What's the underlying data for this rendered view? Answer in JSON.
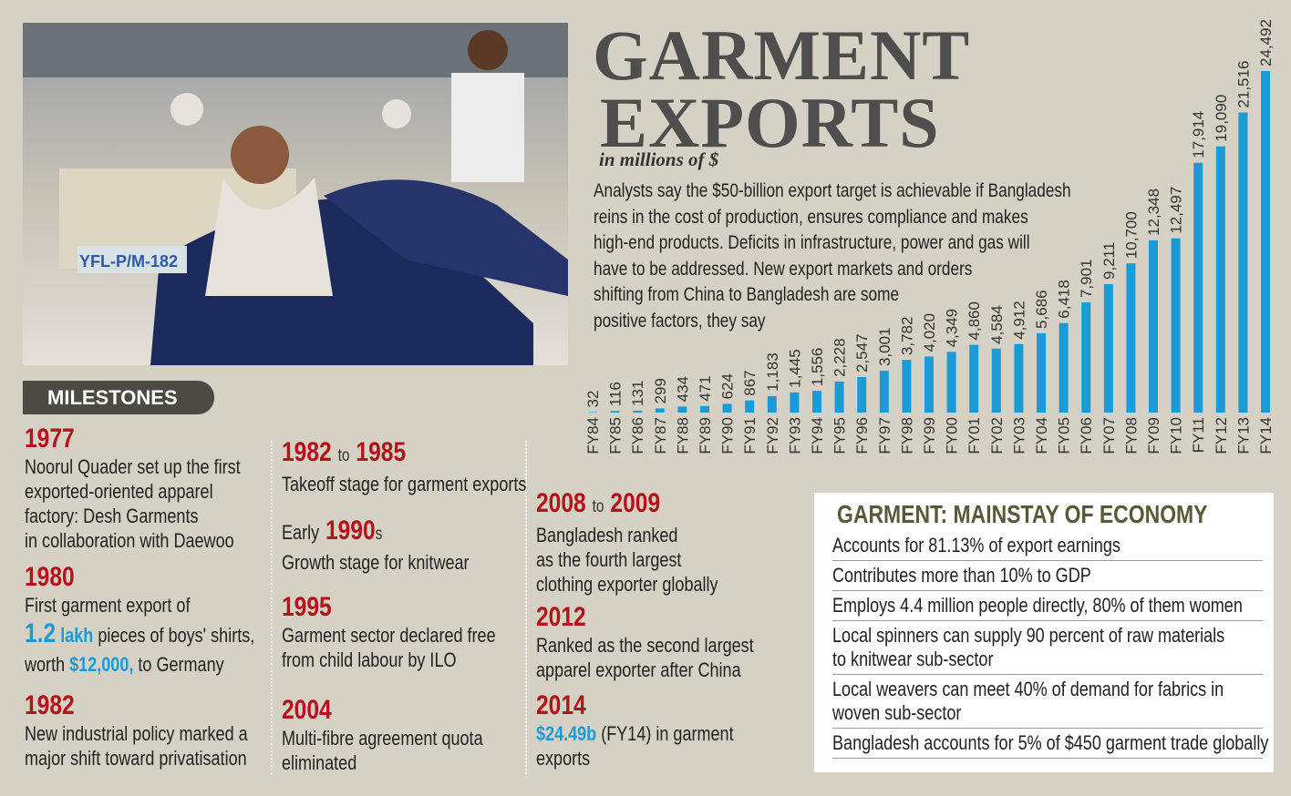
{
  "chart_data": {
    "type": "bar",
    "title": [
      "GARMENT",
      "EXPORTS"
    ],
    "subtitle": "in millions of $",
    "description": [
      "Analysts say the $50-billion export target is achievable if Bangladesh",
      "reins in the cost of production, ensures compliance and makes",
      "high-end products. Deficits in infrastructure, power and gas will",
      "have to be addressed. New export markets and orders",
      "shifting from China to Bangladesh are some",
      "positive factors, they say"
    ],
    "categories": [
      "FY84",
      "FY85",
      "FY86",
      "FY87",
      "FY88",
      "FY89",
      "FY90",
      "FY91",
      "FY92",
      "FY93",
      "FY94",
      "FY95",
      "FY96",
      "FY97",
      "FY98",
      "FY99",
      "FY00",
      "FY01",
      "FY02",
      "FY03",
      "FY04",
      "FY05",
      "FY06",
      "FY07",
      "FY08",
      "FY09",
      "FY10",
      "FY11",
      "FY12",
      "FY13",
      "FY14"
    ],
    "values": [
      32,
      116,
      131,
      299,
      434,
      471,
      624,
      867,
      1183,
      1445,
      1556,
      2228,
      2547,
      3001,
      3782,
      4020,
      4349,
      4860,
      4584,
      4912,
      5686,
      6418,
      7901,
      9211,
      10700,
      12348,
      12497,
      17914,
      19090,
      21516,
      24492
    ],
    "value_labels": [
      "32",
      "116",
      "131",
      "299",
      "434",
      "471",
      "624",
      "867",
      "1,183",
      "1,445",
      "1,556",
      "2,228",
      "2,547",
      "3,001",
      "3,782",
      "4,020",
      "4,349",
      "4,860",
      "4,584",
      "4,912",
      "5,686",
      "6,418",
      "7,901",
      "9,211",
      "10,700",
      "12,348",
      "12,497",
      "17,914",
      "19,090",
      "21,516",
      "24,492"
    ],
    "color": "#1a9bd7"
  },
  "milestones": {
    "label": "MILESTONES",
    "items": [
      {
        "heading": [
          "1977"
        ],
        "lines": [
          "Noorul Quader set up the first",
          "exported-oriented apparel",
          "factory: Desh Garments",
          "in collaboration with Daewoo"
        ]
      },
      {
        "heading": [
          "1980"
        ],
        "lines": [
          "First garment export of",
          [
            "1.2",
            "lakh",
            "pieces of boys' shirts,"
          ],
          [
            "worth",
            "$12,000,",
            "to Germany"
          ]
        ]
      },
      {
        "heading": [
          "1982"
        ],
        "lines": [
          "New industrial policy marked a",
          "major shift toward privatisation"
        ]
      },
      {
        "heading": [
          "1982",
          "to",
          "1985"
        ],
        "lines": [
          "Takeoff stage for garment exports"
        ]
      },
      {
        "heading": [
          "Early",
          "1990",
          "s"
        ],
        "lines": [
          "Growth stage for knitwear"
        ]
      },
      {
        "heading": [
          "1995"
        ],
        "lines": [
          "Garment sector declared free",
          "from child labour by ILO"
        ]
      },
      {
        "heading": [
          "2004"
        ],
        "lines": [
          "Multi-fibre agreement quota",
          "eliminated"
        ]
      },
      {
        "heading": [
          "2008",
          "to",
          "2009"
        ],
        "lines": [
          "Bangladesh ranked",
          "as the fourth largest",
          "clothing exporter globally"
        ]
      },
      {
        "heading": [
          "2012"
        ],
        "lines": [
          "Ranked as the second largest",
          "apparel exporter after China"
        ]
      },
      {
        "heading": [
          "2014"
        ],
        "lines": [
          [
            "$24.49b",
            "(FY14) in garment"
          ],
          "exports"
        ]
      }
    ]
  },
  "table": {
    "title": "GARMENT: MAINSTAY OF ECONOMY",
    "rows": [
      [
        "Accounts for 81.13% of export earnings"
      ],
      [
        "Contributes more than 10% to GDP"
      ],
      [
        "Employs 4.4 million people directly, 80% of them women"
      ],
      [
        "Local spinners can supply 90 percent of raw materials",
        "to knitwear sub-sector"
      ],
      [
        "Local weavers can meet 40% of demand for fabrics in",
        "woven sub-sector"
      ],
      [
        "Bangladesh accounts for 5% of $450 garment trade globally"
      ]
    ]
  }
}
